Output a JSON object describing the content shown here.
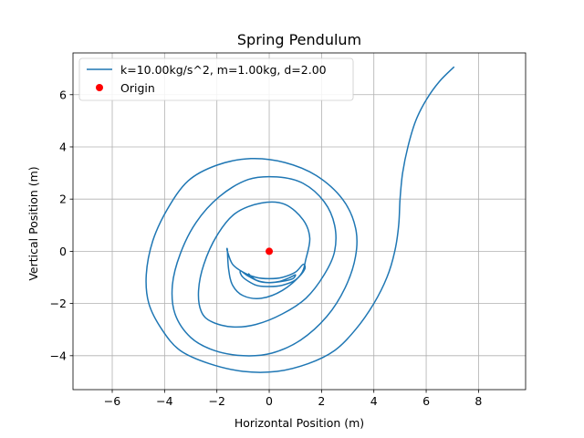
{
  "chart_data": {
    "type": "line",
    "title": "Spring Pendulum",
    "xlabel": "Horizontal Position (m)",
    "ylabel": "Vertical Position (m)",
    "xlim": [
      -7.5,
      9.8
    ],
    "ylim": [
      -5.3,
      7.6
    ],
    "xticks": [
      -6,
      -4,
      -2,
      0,
      2,
      4,
      6,
      8
    ],
    "yticks": [
      -4,
      -2,
      0,
      2,
      4,
      6
    ],
    "xtick_labels": [
      "−6",
      "−4",
      "−2",
      "0",
      "2",
      "4",
      "6",
      "8"
    ],
    "ytick_labels": [
      "−4",
      "−2",
      "0",
      "2",
      "4",
      "6"
    ],
    "grid": true,
    "legend_position": "top-left",
    "colors": {
      "series": "#1f77b4",
      "origin": "#ff0000",
      "grid": "#b0b0b0"
    },
    "series": [
      {
        "name": "k=10.00kg/s^2, m=1.00kg, d=2.00",
        "kind": "line",
        "x": [
          7.07,
          6.5,
          6.0,
          5.6,
          5.3,
          5.1,
          5.0,
          4.95,
          4.8,
          4.5,
          4.0,
          3.3,
          2.5,
          1.5,
          0.3,
          -1.0,
          -2.3,
          -3.4,
          -4.1,
          -4.6,
          -4.7,
          -4.45,
          -3.9,
          -3.1,
          -2.0,
          -0.7,
          0.6,
          1.8,
          2.8,
          3.3,
          3.3,
          2.9,
          2.2,
          1.2,
          0.1,
          -1.0,
          -2.1,
          -3.0,
          -3.6,
          -3.7,
          -3.4,
          -2.8,
          -1.9,
          -0.8,
          0.3,
          1.3,
          2.1,
          2.5,
          2.5,
          2.1,
          1.4,
          0.5,
          -0.5,
          -1.4,
          -2.2,
          -2.6,
          -2.7,
          -2.5,
          -2.0,
          -1.3,
          -0.3,
          0.6,
          1.3,
          1.55,
          1.4,
          1.2,
          0.5,
          -0.3,
          -1.0,
          -1.4,
          -1.55,
          -1.6,
          -1.6,
          -1.4,
          -1.0,
          -0.5,
          0.0,
          0.5,
          1.0,
          1.3,
          1.35,
          1.0,
          0.5,
          0.0,
          -0.5,
          -1.0,
          -1.1,
          -0.8,
          -0.4,
          0.0,
          0.4,
          0.8,
          1.0,
          0.9,
          0.5,
          0.0,
          -0.5,
          -0.8
        ],
        "y": [
          7.07,
          6.5,
          5.8,
          5.0,
          4.0,
          3.0,
          2.0,
          1.0,
          0.0,
          -1.0,
          -2.0,
          -3.0,
          -3.8,
          -4.3,
          -4.6,
          -4.6,
          -4.3,
          -3.8,
          -3.0,
          -2.0,
          -0.9,
          0.4,
          1.6,
          2.7,
          3.3,
          3.55,
          3.4,
          2.9,
          2.0,
          0.9,
          -0.2,
          -1.4,
          -2.5,
          -3.4,
          -3.9,
          -4.0,
          -3.8,
          -3.3,
          -2.4,
          -1.3,
          -0.1,
          1.1,
          2.1,
          2.75,
          2.85,
          2.6,
          1.9,
          1.0,
          0.0,
          -0.9,
          -1.8,
          -2.4,
          -2.8,
          -2.9,
          -2.7,
          -2.3,
          -1.5,
          -0.5,
          0.6,
          1.45,
          1.85,
          1.8,
          1.2,
          0.5,
          -0.3,
          -0.9,
          -1.5,
          -1.8,
          -1.7,
          -1.3,
          -0.7,
          0.05,
          0.0,
          -0.5,
          -0.8,
          -1.0,
          -1.05,
          -1.0,
          -0.8,
          -0.5,
          -0.7,
          -1.1,
          -1.3,
          -1.35,
          -1.3,
          -1.0,
          -0.75,
          -0.95,
          -1.15,
          -1.2,
          -1.15,
          -1.0,
          -0.9,
          -1.05,
          -1.15,
          -1.2,
          -1.1,
          -0.85
        ]
      },
      {
        "name": "Origin",
        "kind": "marker",
        "x": [
          0
        ],
        "y": [
          0
        ]
      }
    ]
  }
}
